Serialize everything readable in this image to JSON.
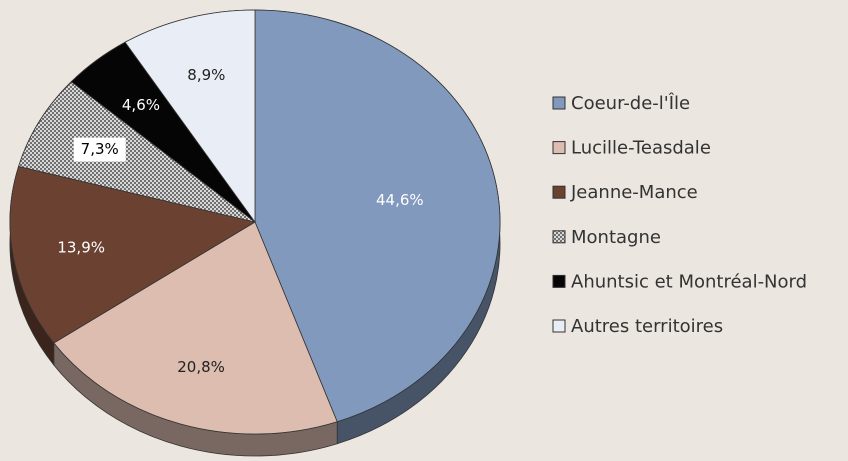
{
  "chart_data": {
    "type": "pie",
    "categories": [
      "Coeur-de-l'Île",
      "Lucille-Teasdale",
      "Jeanne-Mance",
      "Montagne",
      "Ahuntsic et Montréal-Nord",
      "Autres territoires"
    ],
    "values": [
      44.6,
      20.8,
      13.9,
      7.3,
      4.6,
      8.9
    ],
    "value_labels": [
      "44,6%",
      "20,8%",
      "13,9%",
      "7,3%",
      "4,6%",
      "8,9%"
    ],
    "colors": [
      "#8199bd",
      "#dcbdb0",
      "#6b4232",
      "#b8b8b8",
      "#050505",
      "#e9eef6"
    ],
    "patterned": [
      false,
      false,
      false,
      true,
      false,
      false
    ],
    "legend": "right"
  }
}
